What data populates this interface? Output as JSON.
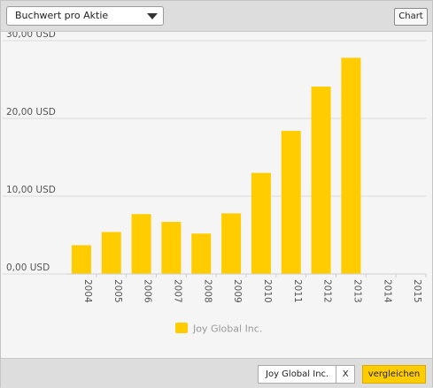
{
  "toolbar": {
    "metric_label": "Buchwert pro Aktie",
    "chart_button_label": "Chart"
  },
  "footer": {
    "compare_company": "Joy Global Inc.",
    "remove_label": "X",
    "compare_button_label": "vergleichen"
  },
  "colors": {
    "bar": "#ffcc00",
    "grid": "#dcdcdc",
    "axis_text": "#555555"
  },
  "chart_data": {
    "type": "bar",
    "categories": [
      "2004",
      "2005",
      "2006",
      "2007",
      "2008",
      "2009",
      "2010",
      "2011",
      "2012",
      "2013",
      "2014",
      "2015"
    ],
    "series": [
      {
        "name": "Joy Global Inc.",
        "values": [
          3.7,
          5.4,
          7.7,
          6.7,
          5.2,
          7.8,
          13.0,
          18.4,
          24.1,
          27.8,
          null,
          null
        ]
      }
    ],
    "ylim": [
      0,
      30
    ],
    "yticks": [
      0,
      10,
      20,
      30
    ],
    "ytick_labels": [
      "0,00 USD",
      "10,00 USD",
      "20,00 USD",
      "30,00 USD"
    ],
    "grid": true,
    "legend": "bottom-center"
  }
}
